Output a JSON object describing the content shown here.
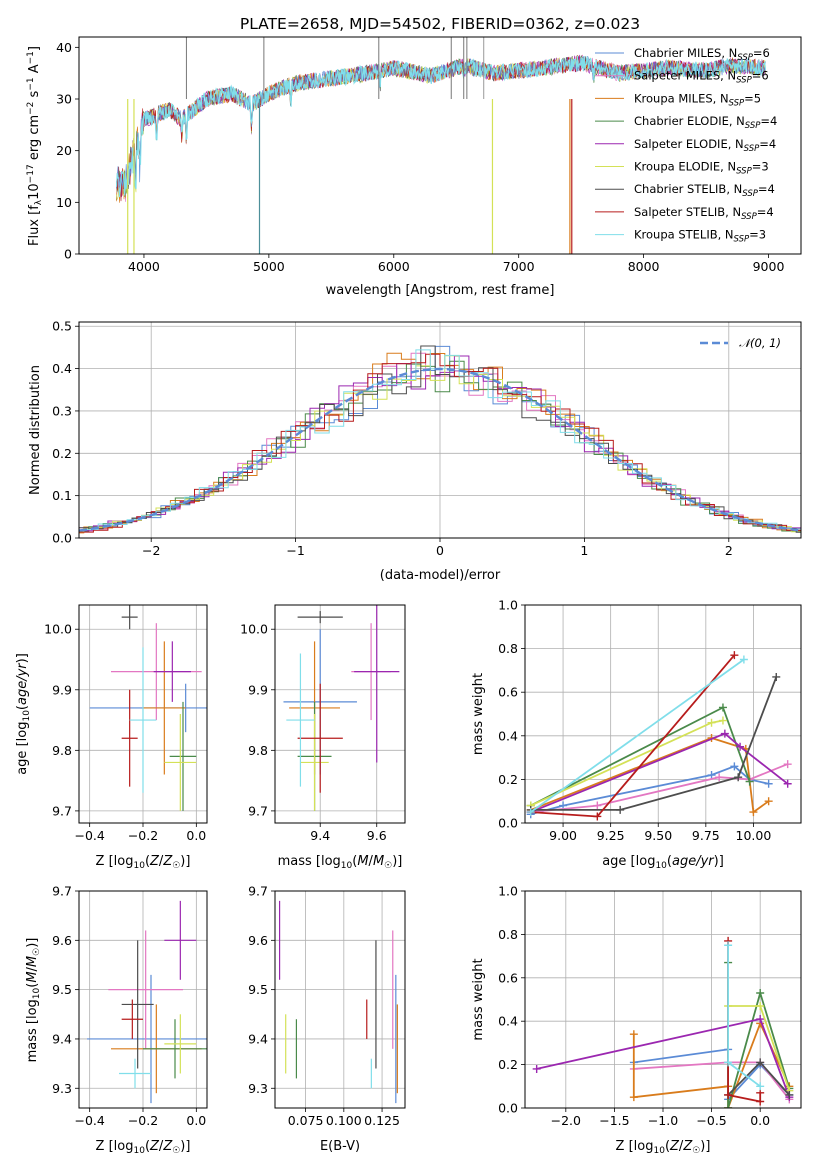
{
  "page": {
    "title": "PLATE=2658, MJD=54502, FIBERID=0362, z=0.023"
  },
  "colors": {
    "chabrier_miles": "#5b8bd6",
    "salpeter_miles": "#e377c2",
    "kroupa_miles": "#d97c1c",
    "chabrier_elodie": "#4a8a4a",
    "salpeter_elodie": "#9b27b0",
    "kroupa_elodie": "#d4e157",
    "chabrier_stelib": "#4d4d4d",
    "salpeter_stelib": "#b71c1c",
    "kroupa_stelib": "#80deea",
    "normal": "#5b8bd6"
  },
  "chart_data": [
    {
      "id": "spectrum",
      "type": "line",
      "xlabel": "wavelength [Angstrom, rest frame]",
      "ylabel": "Flux [fλ10⁻¹⁷ erg cm⁻² s⁻¹ A⁻¹]",
      "xlim": [
        3480,
        9260
      ],
      "ylim": [
        0,
        42
      ],
      "xticks": [
        "4000",
        "5000",
        "6000",
        "7000",
        "8000",
        "9000"
      ],
      "yticks": [
        "0",
        "10",
        "20",
        "30",
        "40"
      ],
      "grid": false,
      "legend_position": "right",
      "anchor_x": [
        3780,
        3850,
        3900,
        4000,
        4100,
        4200,
        4300,
        4500,
        4700,
        4860,
        5000,
        5200,
        5500,
        5800,
        6000,
        6300,
        6563,
        6800,
        7000,
        7200,
        7500,
        7800,
        8200,
        8500,
        8700,
        8980
      ],
      "anchor_y": [
        14,
        13,
        18,
        26,
        27,
        28,
        26,
        30,
        31,
        29,
        31,
        33,
        34,
        35,
        36,
        34.5,
        36.5,
        35,
        35.5,
        36,
        37,
        35,
        36,
        35.5,
        36.5,
        36
      ],
      "series": [
        {
          "name": "Chabrier MILES, N_SSP=6",
          "label_main": "Chabrier MILES, N",
          "label_sub": "SSP",
          "label_tail": "=6",
          "color": "#5b8bd6"
        },
        {
          "name": "Salpeter MILES, N_SSP=6",
          "label_main": "Salpeter MILES, N",
          "label_sub": "SSP",
          "label_tail": "=6",
          "color": "#e377c2"
        },
        {
          "name": "Kroupa MILES, N_SSP=5",
          "label_main": "Kroupa MILES, N",
          "label_sub": "SSP",
          "label_tail": "=5",
          "color": "#d97c1c"
        },
        {
          "name": "Chabrier ELODIE, N_SSP=4",
          "label_main": "Chabrier ELODIE, N",
          "label_sub": "SSP",
          "label_tail": "=4",
          "color": "#4a8a4a"
        },
        {
          "name": "Salpeter ELODIE, N_SSP=4",
          "label_main": "Salpeter ELODIE, N",
          "label_sub": "SSP",
          "label_tail": "=4",
          "color": "#9b27b0"
        },
        {
          "name": "Kroupa ELODIE, N_SSP=3",
          "label_main": "Kroupa ELODIE, N",
          "label_sub": "SSP",
          "label_tail": "=3",
          "color": "#d4e157"
        },
        {
          "name": "Chabrier STELIB, N_SSP=4",
          "label_main": "Chabrier STELIB, N",
          "label_sub": "SSP",
          "label_tail": "=4",
          "color": "#4d4d4d"
        },
        {
          "name": "Salpeter STELIB, N_SSP=4",
          "label_main": "Salpeter STELIB, N",
          "label_sub": "SSP",
          "label_tail": "=4",
          "color": "#b71c1c"
        },
        {
          "name": "Kroupa STELIB, N_SSP=3",
          "label_main": "Kroupa STELIB, N",
          "label_sub": "SSP",
          "label_tail": "=3",
          "color": "#80deea"
        }
      ]
    },
    {
      "id": "residuals",
      "type": "histogram",
      "xlabel": "(data-model)/error",
      "ylabel": "Normed distribution",
      "xlim": [
        -2.5,
        2.5
      ],
      "ylim": [
        0,
        0.51
      ],
      "xticks": [
        "−2",
        "−1",
        "0",
        "1",
        "2"
      ],
      "yticks": [
        "0.0",
        "0.1",
        "0.2",
        "0.3",
        "0.4",
        "0.5"
      ],
      "grid": true,
      "legend": "𝒩(0, 1)",
      "bin_width": 0.1,
      "reference_curve": "normal(0,1)"
    },
    {
      "id": "age_vs_Z",
      "type": "errorbar",
      "xlabel": "Z [log10(Z/Z☉)]",
      "ylabel": "age [log10(age/yr)]",
      "xlim": [
        -0.44,
        0.04
      ],
      "ylim": [
        9.68,
        10.04
      ],
      "xticks": [
        "−0.4",
        "−0.2",
        "0.0"
      ],
      "yticks": [
        "9.7",
        "9.8",
        "9.9",
        "10.0"
      ],
      "points": [
        {
          "x": -0.04,
          "y": 9.87,
          "xerr": 0.36,
          "yerr": 0.04
        },
        {
          "x": -0.15,
          "y": 9.93,
          "xerr": 0.17,
          "yerr": 0.08
        },
        {
          "x": -0.12,
          "y": 9.87,
          "xerr": 0.08,
          "yerr": 0.11
        },
        {
          "x": -0.05,
          "y": 9.79,
          "xerr": 0.05,
          "yerr": 0.09
        },
        {
          "x": -0.09,
          "y": 9.93,
          "xerr": 0.07,
          "yerr": 0.05
        },
        {
          "x": -0.06,
          "y": 9.78,
          "xerr": 0.06,
          "yerr": 0.08
        },
        {
          "x": -0.25,
          "y": 10.02,
          "xerr": 0.03,
          "yerr": 0.02
        },
        {
          "x": -0.25,
          "y": 9.82,
          "xerr": 0.03,
          "yerr": 0.08
        },
        {
          "x": -0.2,
          "y": 9.85,
          "xerr": 0.05,
          "yerr": 0.12
        }
      ]
    },
    {
      "id": "age_vs_mass",
      "type": "errorbar",
      "xlabel": "mass [log10(M/M☉)]",
      "ylabel": "",
      "xlim": [
        9.24,
        9.7
      ],
      "ylim": [
        9.68,
        10.04
      ],
      "xticks": [
        "9.4",
        "9.6"
      ],
      "yticks": [
        "9.7",
        "9.8",
        "9.9",
        "10.0"
      ],
      "points": [
        {
          "x": 9.4,
          "y": 9.88,
          "xerr": 0.13,
          "yerr": 0.12
        },
        {
          "x": 9.58,
          "y": 9.93,
          "xerr": 0.07,
          "yerr": 0.08
        },
        {
          "x": 9.38,
          "y": 9.87,
          "xerr": 0.09,
          "yerr": 0.11
        },
        {
          "x": 9.38,
          "y": 9.79,
          "xerr": 0.06,
          "yerr": 0.09
        },
        {
          "x": 9.6,
          "y": 9.93,
          "xerr": 0.08,
          "yerr": 0.15
        },
        {
          "x": 9.38,
          "y": 9.78,
          "xerr": 0.05,
          "yerr": 0.08
        },
        {
          "x": 9.4,
          "y": 10.02,
          "xerr": 0.08,
          "yerr": 0.01
        },
        {
          "x": 9.4,
          "y": 9.82,
          "xerr": 0.08,
          "yerr": 0.09
        },
        {
          "x": 9.33,
          "y": 9.85,
          "xerr": 0.05,
          "yerr": 0.11
        }
      ]
    },
    {
      "id": "weight_vs_age",
      "type": "line",
      "xlabel": "age [log10(age/yr)]",
      "ylabel": "mass weight",
      "xlim": [
        8.8,
        10.25
      ],
      "ylim": [
        0,
        1
      ],
      "xticks": [
        "9.00",
        "9.25",
        "9.50",
        "9.75",
        "10.00"
      ],
      "yticks": [
        "0.0",
        "0.2",
        "0.4",
        "0.6",
        "0.8",
        "1.0"
      ],
      "grid": true,
      "series": [
        {
          "x": [
            8.83,
            9.0,
            9.78,
            9.9,
            9.98,
            10.08
          ],
          "y": [
            0.04,
            0.08,
            0.22,
            0.26,
            0.2,
            0.18
          ]
        },
        {
          "x": [
            8.83,
            9.18,
            9.82,
            9.98,
            10.18
          ],
          "y": [
            0.05,
            0.08,
            0.21,
            0.2,
            0.27
          ]
        },
        {
          "x": [
            8.83,
            9.78,
            9.96,
            10.0,
            10.08
          ],
          "y": [
            0.06,
            0.39,
            0.34,
            0.05,
            0.1
          ]
        },
        {
          "x": [
            8.83,
            9.84,
            9.98
          ],
          "y": [
            0.08,
            0.53,
            0.19
          ]
        },
        {
          "x": [
            8.83,
            9.85,
            9.93,
            10.18
          ],
          "y": [
            0.05,
            0.41,
            0.35,
            0.18
          ]
        },
        {
          "x": [
            8.83,
            9.78,
            9.84
          ],
          "y": [
            0.08,
            0.46,
            0.47
          ]
        },
        {
          "x": [
            8.83,
            9.3,
            9.92,
            10.12
          ],
          "y": [
            0.06,
            0.06,
            0.21,
            0.67
          ]
        },
        {
          "x": [
            8.83,
            9.18,
            9.9
          ],
          "y": [
            0.05,
            0.03,
            0.77
          ]
        },
        {
          "x": [
            8.83,
            9.95
          ],
          "y": [
            0.05,
            0.75
          ]
        }
      ]
    },
    {
      "id": "mass_vs_Z",
      "type": "errorbar",
      "xlabel": "Z [log10(Z/Z☉)]",
      "ylabel": "mass [log10(M/M☉)]",
      "xlim": [
        -0.44,
        0.04
      ],
      "ylim": [
        9.26,
        9.7
      ],
      "xticks": [
        "−0.4",
        "−0.2",
        "0.0"
      ],
      "yticks": [
        "9.3",
        "9.4",
        "9.5",
        "9.6",
        "9.7"
      ],
      "points": [
        {
          "x": -0.17,
          "y": 9.4,
          "xerr": 0.24,
          "yerr": 0.13
        },
        {
          "x": -0.19,
          "y": 9.5,
          "xerr": 0.14,
          "yerr": 0.12
        },
        {
          "x": -0.15,
          "y": 9.38,
          "xerr": 0.17,
          "yerr": 0.09
        },
        {
          "x": -0.08,
          "y": 9.38,
          "xerr": 0.12,
          "yerr": 0.06
        },
        {
          "x": -0.06,
          "y": 9.6,
          "xerr": 0.06,
          "yerr": 0.08
        },
        {
          "x": -0.06,
          "y": 9.39,
          "xerr": 0.06,
          "yerr": 0.06
        },
        {
          "x": -0.22,
          "y": 9.47,
          "xerr": 0.06,
          "yerr": 0.13
        },
        {
          "x": -0.24,
          "y": 9.44,
          "xerr": 0.04,
          "yerr": 0.04
        },
        {
          "x": -0.23,
          "y": 9.33,
          "xerr": 0.06,
          "yerr": 0.03
        }
      ]
    },
    {
      "id": "mass_vs_EBV",
      "type": "errorbar",
      "xlabel": "E(B-V)",
      "ylabel": "",
      "xlim": [
        0.055,
        0.14
      ],
      "ylim": [
        9.26,
        9.7
      ],
      "xticks": [
        "0.075",
        "0.100",
        "0.125"
      ],
      "yticks": [
        "9.3",
        "9.4",
        "9.5",
        "9.6",
        "9.7"
      ],
      "points": [
        {
          "x": 0.134,
          "y": 9.4,
          "xerr": 0,
          "yerr": 0.13
        },
        {
          "x": 0.132,
          "y": 9.5,
          "xerr": 0,
          "yerr": 0.12
        },
        {
          "x": 0.135,
          "y": 9.38,
          "xerr": 0,
          "yerr": 0.09
        },
        {
          "x": 0.069,
          "y": 9.38,
          "xerr": 0,
          "yerr": 0.06
        },
        {
          "x": 0.058,
          "y": 9.6,
          "xerr": 0,
          "yerr": 0.08
        },
        {
          "x": 0.062,
          "y": 9.39,
          "xerr": 0,
          "yerr": 0.06
        },
        {
          "x": 0.121,
          "y": 9.47,
          "xerr": 0,
          "yerr": 0.13
        },
        {
          "x": 0.115,
          "y": 9.44,
          "xerr": 0,
          "yerr": 0.04
        },
        {
          "x": 0.118,
          "y": 9.33,
          "xerr": 0,
          "yerr": 0.03
        }
      ]
    },
    {
      "id": "weight_vs_Z",
      "type": "line",
      "xlabel": "Z [log10(Z/Z☉)]",
      "ylabel": "mass weight",
      "xlim": [
        -2.42,
        0.42
      ],
      "ylim": [
        0,
        1
      ],
      "xticks": [
        "−2.0",
        "−1.5",
        "−1.0",
        "−0.5",
        "0.0"
      ],
      "yticks": [
        "0.0",
        "0.2",
        "0.4",
        "0.6",
        "0.8",
        "1.0"
      ],
      "grid": true,
      "series": [
        {
          "x": [
            -1.3,
            -0.33,
            -0.33,
            0.0,
            0.3
          ],
          "y": [
            0.21,
            0.27,
            0.04,
            0.2,
            0.06
          ]
        },
        {
          "x": [
            -1.3,
            -0.33,
            0.0,
            0.3
          ],
          "y": [
            0.18,
            0.21,
            0.21,
            0.04
          ]
        },
        {
          "x": [
            -1.3,
            -1.3,
            -0.33,
            -0.33,
            0.0,
            0.3
          ],
          "y": [
            0.34,
            0.05,
            0.1,
            0.0,
            0.39,
            0.1
          ]
        },
        {
          "x": [
            -0.33,
            -0.33,
            0.0,
            0.3
          ],
          "y": [
            0.67,
            0.0,
            0.53,
            0.09
          ]
        },
        {
          "x": [
            -2.3,
            0.0,
            0.3
          ],
          "y": [
            0.18,
            0.41,
            0.05
          ]
        },
        {
          "x": [
            -0.33,
            0.0,
            0.3
          ],
          "y": [
            0.47,
            0.47,
            0.08
          ]
        },
        {
          "x": [
            -0.33,
            0.0,
            0.3
          ],
          "y": [
            0.06,
            0.21,
            0.06
          ]
        },
        {
          "x": [
            -0.33,
            -0.33,
            0.0,
            0.0
          ],
          "y": [
            0.77,
            0.06,
            0.03,
            0.07
          ]
        },
        {
          "x": [
            -0.33,
            -0.33,
            0.0
          ],
          "y": [
            0.75,
            0.21,
            0.1
          ]
        }
      ]
    }
  ]
}
